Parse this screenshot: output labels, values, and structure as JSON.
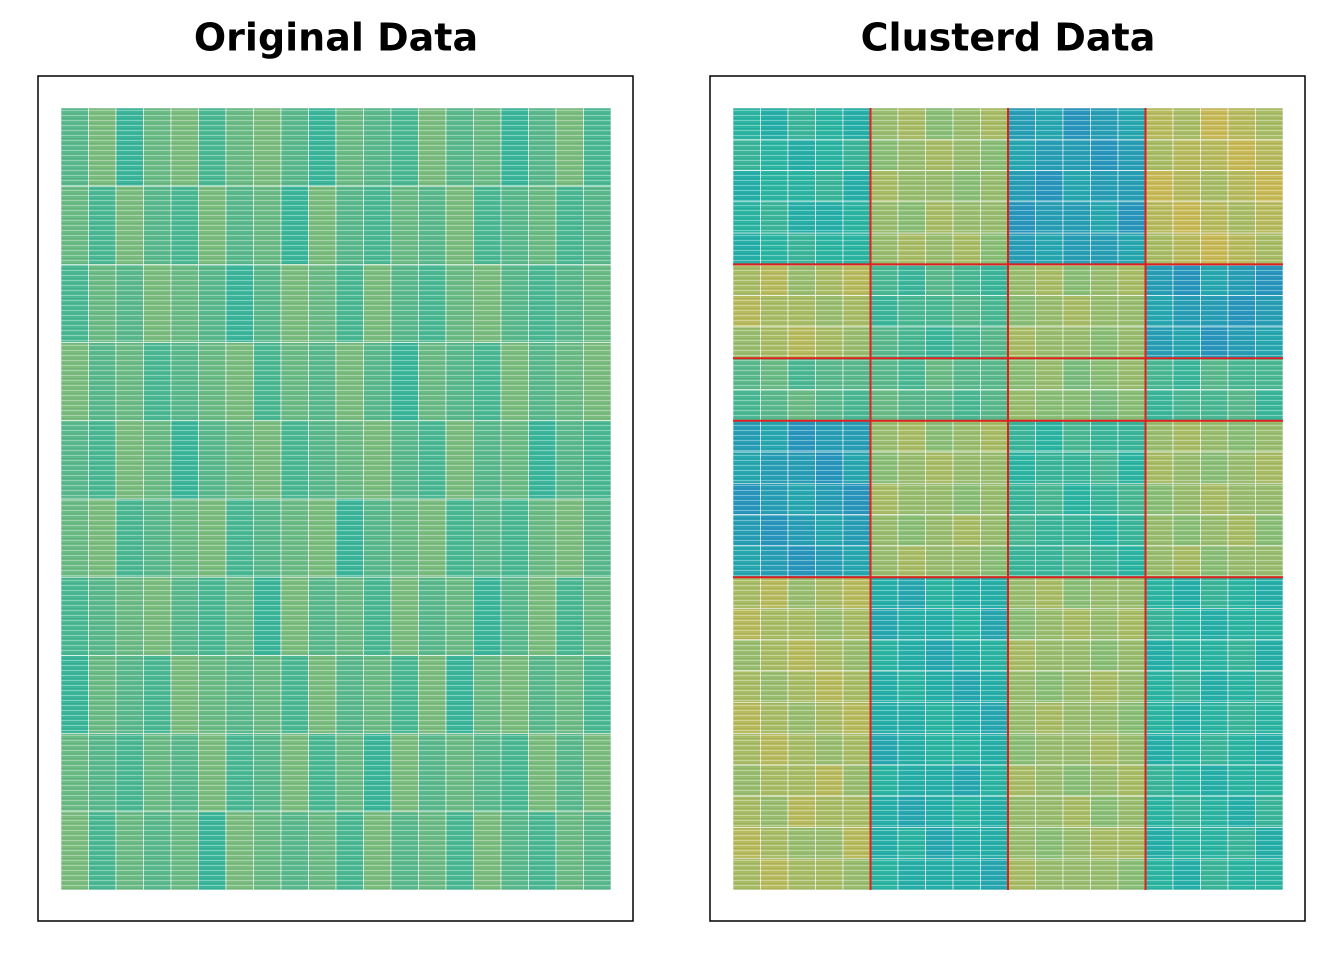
{
  "chart_data": [
    {
      "type": "heatmap",
      "title": "Original Data",
      "zlim": [
        0,
        1
      ],
      "colorscale": [
        "#2a7fd0",
        "#27b5a5",
        "#8fbf75",
        "#f7b63e"
      ],
      "values": [
        [
          0.5,
          0.6,
          0.4,
          0.55,
          0.6,
          0.45,
          0.55,
          0.6,
          0.5,
          0.4,
          0.55,
          0.5,
          0.45,
          0.6,
          0.5,
          0.55,
          0.4,
          0.5,
          0.6,
          0.45
        ],
        [
          0.55,
          0.45,
          0.6,
          0.5,
          0.45,
          0.6,
          0.5,
          0.55,
          0.4,
          0.6,
          0.5,
          0.45,
          0.55,
          0.5,
          0.6,
          0.45,
          0.5,
          0.55,
          0.45,
          0.5
        ],
        [
          0.45,
          0.55,
          0.5,
          0.6,
          0.55,
          0.5,
          0.4,
          0.5,
          0.6,
          0.55,
          0.45,
          0.6,
          0.5,
          0.45,
          0.55,
          0.6,
          0.5,
          0.45,
          0.5,
          0.55
        ],
        [
          0.6,
          0.5,
          0.55,
          0.45,
          0.5,
          0.55,
          0.6,
          0.45,
          0.55,
          0.5,
          0.6,
          0.5,
          0.4,
          0.55,
          0.5,
          0.45,
          0.6,
          0.5,
          0.55,
          0.6
        ],
        [
          0.5,
          0.45,
          0.6,
          0.55,
          0.4,
          0.5,
          0.55,
          0.6,
          0.45,
          0.5,
          0.55,
          0.6,
          0.5,
          0.45,
          0.6,
          0.5,
          0.55,
          0.4,
          0.5,
          0.45
        ],
        [
          0.55,
          0.6,
          0.45,
          0.5,
          0.55,
          0.6,
          0.45,
          0.5,
          0.55,
          0.6,
          0.4,
          0.5,
          0.55,
          0.6,
          0.45,
          0.5,
          0.45,
          0.55,
          0.6,
          0.5
        ],
        [
          0.45,
          0.5,
          0.55,
          0.6,
          0.5,
          0.45,
          0.55,
          0.4,
          0.6,
          0.5,
          0.55,
          0.45,
          0.6,
          0.5,
          0.55,
          0.4,
          0.5,
          0.6,
          0.45,
          0.55
        ],
        [
          0.4,
          0.55,
          0.5,
          0.45,
          0.6,
          0.55,
          0.5,
          0.55,
          0.45,
          0.6,
          0.5,
          0.55,
          0.45,
          0.6,
          0.4,
          0.55,
          0.6,
          0.5,
          0.55,
          0.45
        ],
        [
          0.55,
          0.5,
          0.45,
          0.55,
          0.5,
          0.6,
          0.45,
          0.5,
          0.6,
          0.45,
          0.55,
          0.4,
          0.6,
          0.5,
          0.55,
          0.5,
          0.45,
          0.6,
          0.5,
          0.6
        ],
        [
          0.6,
          0.45,
          0.55,
          0.5,
          0.55,
          0.4,
          0.6,
          0.55,
          0.5,
          0.55,
          0.45,
          0.6,
          0.5,
          0.55,
          0.45,
          0.6,
          0.5,
          0.45,
          0.55,
          0.5
        ]
      ]
    },
    {
      "type": "heatmap",
      "title": "Clusterd Data",
      "zlim": [
        0,
        1
      ],
      "colorscale": [
        "#2a7fd0",
        "#27b5a5",
        "#8fbf75",
        "#f7b63e"
      ],
      "row_breaks": [
        5,
        8,
        10,
        15
      ],
      "col_breaks": [
        5,
        10,
        15
      ],
      "break_color": "#e02020",
      "values": [
        [
          0.35,
          0.3,
          0.4,
          0.35,
          0.3,
          0.7,
          0.75,
          0.65,
          0.7,
          0.75,
          0.2,
          0.25,
          0.15,
          0.2,
          0.25,
          0.8,
          0.75,
          0.85,
          0.8,
          0.75
        ],
        [
          0.4,
          0.35,
          0.3,
          0.35,
          0.4,
          0.65,
          0.7,
          0.75,
          0.7,
          0.65,
          0.25,
          0.2,
          0.2,
          0.15,
          0.2,
          0.75,
          0.8,
          0.8,
          0.85,
          0.8
        ],
        [
          0.3,
          0.35,
          0.35,
          0.4,
          0.3,
          0.75,
          0.7,
          0.7,
          0.65,
          0.7,
          0.2,
          0.15,
          0.25,
          0.2,
          0.2,
          0.85,
          0.8,
          0.75,
          0.8,
          0.85
        ],
        [
          0.35,
          0.4,
          0.3,
          0.3,
          0.35,
          0.7,
          0.65,
          0.75,
          0.7,
          0.7,
          0.15,
          0.2,
          0.2,
          0.25,
          0.15,
          0.8,
          0.85,
          0.8,
          0.75,
          0.8
        ],
        [
          0.3,
          0.35,
          0.4,
          0.35,
          0.35,
          0.7,
          0.75,
          0.7,
          0.75,
          0.65,
          0.2,
          0.25,
          0.2,
          0.2,
          0.25,
          0.75,
          0.8,
          0.85,
          0.8,
          0.75
        ],
        [
          0.75,
          0.8,
          0.7,
          0.75,
          0.8,
          0.45,
          0.4,
          0.5,
          0.45,
          0.4,
          0.7,
          0.75,
          0.65,
          0.7,
          0.75,
          0.2,
          0.15,
          0.25,
          0.2,
          0.15
        ],
        [
          0.8,
          0.75,
          0.75,
          0.7,
          0.75,
          0.4,
          0.45,
          0.45,
          0.5,
          0.45,
          0.65,
          0.7,
          0.75,
          0.7,
          0.7,
          0.25,
          0.2,
          0.2,
          0.15,
          0.2
        ],
        [
          0.7,
          0.75,
          0.8,
          0.75,
          0.7,
          0.5,
          0.45,
          0.4,
          0.45,
          0.5,
          0.75,
          0.7,
          0.7,
          0.65,
          0.7,
          0.2,
          0.25,
          0.15,
          0.2,
          0.25
        ],
        [
          0.5,
          0.55,
          0.45,
          0.5,
          0.5,
          0.5,
          0.45,
          0.55,
          0.5,
          0.5,
          0.65,
          0.7,
          0.6,
          0.65,
          0.7,
          0.45,
          0.4,
          0.5,
          0.45,
          0.45
        ],
        [
          0.45,
          0.5,
          0.55,
          0.5,
          0.45,
          0.55,
          0.5,
          0.5,
          0.45,
          0.5,
          0.7,
          0.65,
          0.65,
          0.6,
          0.65,
          0.4,
          0.45,
          0.45,
          0.5,
          0.4
        ],
        [
          0.2,
          0.25,
          0.15,
          0.2,
          0.2,
          0.7,
          0.75,
          0.65,
          0.7,
          0.75,
          0.4,
          0.35,
          0.45,
          0.4,
          0.4,
          0.7,
          0.75,
          0.7,
          0.65,
          0.7
        ],
        [
          0.25,
          0.2,
          0.2,
          0.15,
          0.25,
          0.65,
          0.7,
          0.75,
          0.7,
          0.7,
          0.35,
          0.4,
          0.4,
          0.45,
          0.35,
          0.75,
          0.7,
          0.65,
          0.7,
          0.75
        ],
        [
          0.15,
          0.2,
          0.25,
          0.2,
          0.15,
          0.75,
          0.7,
          0.7,
          0.65,
          0.7,
          0.4,
          0.45,
          0.35,
          0.4,
          0.45,
          0.65,
          0.7,
          0.75,
          0.7,
          0.7
        ],
        [
          0.2,
          0.15,
          0.2,
          0.25,
          0.2,
          0.7,
          0.65,
          0.7,
          0.75,
          0.7,
          0.45,
          0.4,
          0.4,
          0.35,
          0.4,
          0.7,
          0.65,
          0.7,
          0.75,
          0.65
        ],
        [
          0.25,
          0.2,
          0.15,
          0.2,
          0.25,
          0.7,
          0.75,
          0.7,
          0.7,
          0.65,
          0.4,
          0.4,
          0.45,
          0.4,
          0.35,
          0.7,
          0.75,
          0.65,
          0.7,
          0.7
        ],
        [
          0.75,
          0.8,
          0.7,
          0.75,
          0.8,
          0.3,
          0.25,
          0.35,
          0.3,
          0.3,
          0.7,
          0.75,
          0.65,
          0.7,
          0.7,
          0.35,
          0.3,
          0.4,
          0.35,
          0.3
        ],
        [
          0.8,
          0.75,
          0.75,
          0.7,
          0.75,
          0.25,
          0.3,
          0.3,
          0.35,
          0.25,
          0.65,
          0.7,
          0.75,
          0.7,
          0.75,
          0.4,
          0.35,
          0.3,
          0.35,
          0.35
        ],
        [
          0.7,
          0.75,
          0.8,
          0.75,
          0.7,
          0.35,
          0.3,
          0.25,
          0.3,
          0.35,
          0.75,
          0.7,
          0.7,
          0.65,
          0.7,
          0.3,
          0.35,
          0.35,
          0.4,
          0.3
        ],
        [
          0.75,
          0.7,
          0.75,
          0.8,
          0.75,
          0.3,
          0.35,
          0.3,
          0.25,
          0.3,
          0.7,
          0.65,
          0.7,
          0.75,
          0.7,
          0.35,
          0.4,
          0.3,
          0.35,
          0.4
        ],
        [
          0.8,
          0.75,
          0.7,
          0.75,
          0.8,
          0.3,
          0.3,
          0.35,
          0.3,
          0.25,
          0.7,
          0.75,
          0.7,
          0.7,
          0.65,
          0.35,
          0.3,
          0.35,
          0.4,
          0.35
        ],
        [
          0.75,
          0.8,
          0.75,
          0.7,
          0.75,
          0.25,
          0.3,
          0.35,
          0.35,
          0.3,
          0.65,
          0.7,
          0.7,
          0.75,
          0.7,
          0.3,
          0.35,
          0.4,
          0.35,
          0.3
        ],
        [
          0.7,
          0.75,
          0.75,
          0.8,
          0.7,
          0.35,
          0.3,
          0.3,
          0.25,
          0.35,
          0.75,
          0.7,
          0.65,
          0.7,
          0.75,
          0.4,
          0.35,
          0.3,
          0.35,
          0.35
        ],
        [
          0.75,
          0.7,
          0.8,
          0.75,
          0.75,
          0.3,
          0.25,
          0.3,
          0.35,
          0.3,
          0.7,
          0.7,
          0.75,
          0.65,
          0.7,
          0.35,
          0.4,
          0.35,
          0.3,
          0.4
        ],
        [
          0.8,
          0.75,
          0.7,
          0.7,
          0.8,
          0.3,
          0.35,
          0.25,
          0.3,
          0.3,
          0.7,
          0.65,
          0.7,
          0.75,
          0.75,
          0.3,
          0.35,
          0.35,
          0.4,
          0.3
        ],
        [
          0.75,
          0.8,
          0.75,
          0.75,
          0.7,
          0.35,
          0.3,
          0.3,
          0.3,
          0.25,
          0.75,
          0.7,
          0.7,
          0.7,
          0.65,
          0.35,
          0.3,
          0.4,
          0.35,
          0.35
        ]
      ]
    }
  ]
}
